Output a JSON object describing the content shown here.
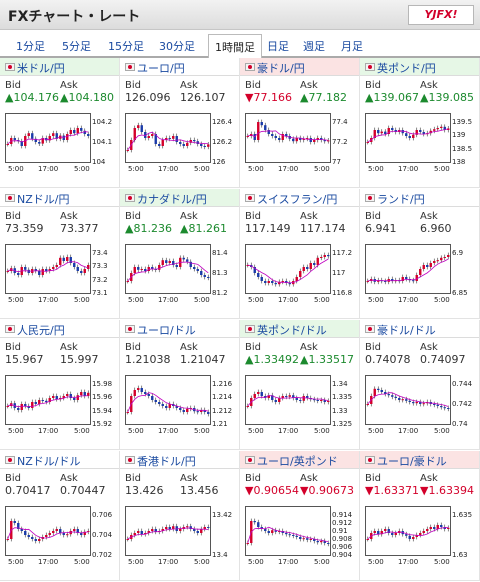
{
  "header": {
    "title": "FXチャート・レート",
    "logo_text": "YJFX!"
  },
  "tabs": [
    "1分足",
    "5分足",
    "15分足",
    "30分足",
    "1時間足",
    "日足",
    "週足",
    "月足"
  ],
  "active_tab": 4,
  "labels": {
    "bid": "Bid",
    "ask": "Ask"
  },
  "xaxis": [
    "5:00",
    "17:00",
    "5:00"
  ],
  "cells": [
    {
      "pair": "米ドル/円",
      "bid": "▲104.176",
      "ask": "▲104.180",
      "dir": "up",
      "y": [
        "104.2",
        "104.1",
        "104"
      ],
      "series": [
        0.35,
        0.5,
        0.45,
        0.42,
        0.3,
        0.55,
        0.62,
        0.48,
        0.4,
        0.36,
        0.5,
        0.44,
        0.55,
        0.62,
        0.48,
        0.56,
        0.45,
        0.6,
        0.7,
        0.62,
        0.75,
        0.68,
        0.6,
        0.55
      ]
    },
    {
      "pair": "ユーロ/円",
      "bid": "126.096",
      "ask": "126.107",
      "dir": "none",
      "y": [
        "126.4",
        "126.2",
        "126"
      ],
      "series": [
        0.2,
        0.45,
        0.75,
        0.82,
        0.65,
        0.5,
        0.55,
        0.6,
        0.35,
        0.3,
        0.45,
        0.5,
        0.48,
        0.55,
        0.4,
        0.35,
        0.3,
        0.38,
        0.45,
        0.42,
        0.35,
        0.3,
        0.28,
        0.34
      ]
    },
    {
      "pair": "豪ドル/円",
      "bid": "▼77.166",
      "ask": "▲77.182",
      "dir": "down",
      "y": [
        "77.4",
        "77.2",
        "77"
      ],
      "series": [
        0.55,
        0.6,
        0.45,
        0.9,
        0.82,
        0.7,
        0.6,
        0.55,
        0.5,
        0.45,
        0.6,
        0.55,
        0.48,
        0.42,
        0.5,
        0.45,
        0.48,
        0.5,
        0.4,
        0.45,
        0.5,
        0.45,
        0.42,
        0.44
      ]
    },
    {
      "pair": "英ポンド/円",
      "bid": "▲139.067",
      "ask": "▲139.085",
      "dir": "up",
      "y": [
        "139.5",
        "139",
        "138.5",
        "138"
      ],
      "series": [
        0.4,
        0.5,
        0.7,
        0.62,
        0.66,
        0.6,
        0.75,
        0.7,
        0.65,
        0.7,
        0.62,
        0.55,
        0.5,
        0.58,
        0.7,
        0.65,
        0.6,
        0.62,
        0.68,
        0.72,
        0.75,
        0.78,
        0.7,
        0.74
      ]
    },
    {
      "pair": "NZドル/円",
      "bid": "73.359",
      "ask": "73.377",
      "dir": "none",
      "y": [
        "73.4",
        "73.3",
        "73.2",
        "73.1"
      ],
      "series": [
        0.45,
        0.52,
        0.4,
        0.35,
        0.55,
        0.48,
        0.4,
        0.5,
        0.45,
        0.35,
        0.5,
        0.45,
        0.5,
        0.55,
        0.6,
        0.78,
        0.7,
        0.8,
        0.65,
        0.55,
        0.45,
        0.4,
        0.5,
        0.6
      ]
    },
    {
      "pair": "カナダドル/円",
      "bid": "▲81.236",
      "ask": "▲81.261",
      "dir": "up",
      "y": [
        "81.4",
        "81.3",
        "81.2"
      ],
      "series": [
        0.2,
        0.4,
        0.55,
        0.48,
        0.5,
        0.45,
        0.55,
        0.5,
        0.48,
        0.6,
        0.72,
        0.65,
        0.7,
        0.6,
        0.55,
        0.78,
        0.74,
        0.68,
        0.55,
        0.5,
        0.45,
        0.35,
        0.3,
        0.28
      ]
    },
    {
      "pair": "スイスフラン/円",
      "bid": "117.149",
      "ask": "117.174",
      "dir": "none",
      "y": [
        "117.2",
        "117",
        "116.8"
      ],
      "series": [
        0.6,
        0.55,
        0.4,
        0.3,
        0.2,
        0.15,
        0.2,
        0.15,
        0.12,
        0.18,
        0.2,
        0.15,
        0.12,
        0.2,
        0.3,
        0.45,
        0.55,
        0.5,
        0.65,
        0.6,
        0.78,
        0.8,
        0.85,
        0.82
      ]
    },
    {
      "pair": "ランド/円",
      "bid": "6.941",
      "ask": "6.960",
      "dir": "none",
      "y": [
        "6.9",
        "6.85"
      ],
      "series": [
        0.2,
        0.25,
        0.18,
        0.22,
        0.2,
        0.18,
        0.25,
        0.2,
        0.22,
        0.2,
        0.3,
        0.25,
        0.22,
        0.2,
        0.35,
        0.5,
        0.6,
        0.55,
        0.65,
        0.7,
        0.72,
        0.78,
        0.8,
        0.85
      ]
    },
    {
      "pair": "人民元/円",
      "bid": "15.967",
      "ask": "15.997",
      "dir": "none",
      "y": [
        "15.98",
        "15.96",
        "15.94",
        "15.92"
      ],
      "series": [
        0.35,
        0.42,
        0.3,
        0.25,
        0.4,
        0.35,
        0.3,
        0.45,
        0.4,
        0.5,
        0.48,
        0.45,
        0.55,
        0.6,
        0.52,
        0.55,
        0.6,
        0.65,
        0.55,
        0.5,
        0.62,
        0.7,
        0.6,
        0.68
      ]
    },
    {
      "pair": "ユーロ/ドル",
      "bid": "1.21038",
      "ask": "1.21047",
      "dir": "none",
      "y": [
        "1.216",
        "1.214",
        "1.212",
        "1.21"
      ],
      "series": [
        0.2,
        0.6,
        0.75,
        0.8,
        0.7,
        0.65,
        0.6,
        0.5,
        0.45,
        0.4,
        0.35,
        0.3,
        0.4,
        0.35,
        0.3,
        0.25,
        0.2,
        0.28,
        0.3,
        0.22,
        0.2,
        0.25,
        0.2,
        0.15
      ]
    },
    {
      "pair": "英ポンド/ドル",
      "bid": "▲1.33492",
      "ask": "▲1.33517",
      "dir": "up",
      "y": [
        "1.34",
        "1.335",
        "1.33",
        "1.325"
      ],
      "series": [
        0.35,
        0.55,
        0.65,
        0.7,
        0.6,
        0.55,
        0.62,
        0.5,
        0.45,
        0.55,
        0.6,
        0.58,
        0.62,
        0.55,
        0.5,
        0.48,
        0.6,
        0.55,
        0.52,
        0.5,
        0.48,
        0.5,
        0.45,
        0.48
      ]
    },
    {
      "pair": "豪ドル/ドル",
      "bid": "0.74078",
      "ask": "0.74097",
      "dir": "none",
      "y": [
        "0.744",
        "0.742",
        "0.74"
      ],
      "series": [
        0.4,
        0.6,
        0.78,
        0.75,
        0.7,
        0.65,
        0.62,
        0.58,
        0.55,
        0.5,
        0.52,
        0.48,
        0.45,
        0.42,
        0.45,
        0.4,
        0.42,
        0.45,
        0.4,
        0.38,
        0.35,
        0.32,
        0.3,
        0.28
      ]
    },
    {
      "pair": "NZドル/ドル",
      "bid": "0.70417",
      "ask": "0.70447",
      "dir": "none",
      "y": [
        "0.706",
        "0.704",
        "0.702"
      ],
      "series": [
        0.3,
        0.75,
        0.7,
        0.55,
        0.5,
        0.4,
        0.35,
        0.3,
        0.25,
        0.3,
        0.35,
        0.4,
        0.45,
        0.5,
        0.55,
        0.45,
        0.4,
        0.42,
        0.5,
        0.55,
        0.45,
        0.4,
        0.48,
        0.5
      ]
    },
    {
      "pair": "香港ドル/円",
      "bid": "13.426",
      "ask": "13.456",
      "dir": "none",
      "y": [
        "13.42",
        "13.4"
      ],
      "series": [
        0.3,
        0.4,
        0.45,
        0.5,
        0.42,
        0.45,
        0.5,
        0.55,
        0.48,
        0.5,
        0.55,
        0.6,
        0.55,
        0.62,
        0.5,
        0.55,
        0.6,
        0.62,
        0.55,
        0.5,
        0.45,
        0.55,
        0.6,
        0.58
      ]
    },
    {
      "pair": "ユーロ/英ポンド",
      "bid": "▼0.90654",
      "ask": "▼0.90673",
      "dir": "down",
      "y": [
        "0.914",
        "0.912",
        "0.91",
        "0.908",
        "0.906",
        "0.904"
      ],
      "series": [
        0.2,
        0.75,
        0.72,
        0.6,
        0.55,
        0.5,
        0.45,
        0.52,
        0.48,
        0.5,
        0.45,
        0.42,
        0.4,
        0.38,
        0.35,
        0.3,
        0.32,
        0.28,
        0.3,
        0.25,
        0.22,
        0.25,
        0.2,
        0.18
      ]
    },
    {
      "pair": "ユーロ/豪ドル",
      "bid": "▼1.63371",
      "ask": "▼1.63394",
      "dir": "down",
      "y": [
        "1.635",
        "1.63"
      ],
      "series": [
        0.3,
        0.45,
        0.5,
        0.42,
        0.5,
        0.55,
        0.45,
        0.4,
        0.45,
        0.5,
        0.42,
        0.38,
        0.3,
        0.35,
        0.4,
        0.45,
        0.5,
        0.55,
        0.6,
        0.55,
        0.65,
        0.6,
        0.55,
        0.58
      ]
    }
  ]
}
